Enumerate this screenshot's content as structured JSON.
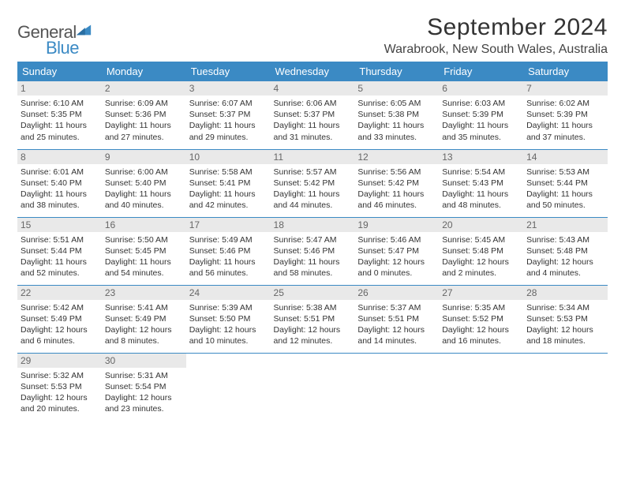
{
  "brand": {
    "name_line1": "General",
    "name_line2": "Blue",
    "color_gray": "#555555",
    "color_blue": "#3b8ac4"
  },
  "header": {
    "month_title": "September 2024",
    "location": "Warabrook, New South Wales, Australia"
  },
  "style": {
    "header_bg": "#3b8ac4",
    "header_fg": "#ffffff",
    "daynum_bg": "#e9e9e9",
    "daynum_fg": "#666666",
    "row_border": "#3b8ac4",
    "body_text": "#333333",
    "page_bg": "#ffffff",
    "title_fontsize": 30,
    "location_fontsize": 16,
    "dayhead_fontsize": 13,
    "daynum_fontsize": 12,
    "daybody_fontsize": 10.5
  },
  "weekdays": [
    "Sunday",
    "Monday",
    "Tuesday",
    "Wednesday",
    "Thursday",
    "Friday",
    "Saturday"
  ],
  "weeks": [
    [
      {
        "n": "1",
        "sr": "Sunrise: 6:10 AM",
        "ss": "Sunset: 5:35 PM",
        "d1": "Daylight: 11 hours",
        "d2": "and 25 minutes."
      },
      {
        "n": "2",
        "sr": "Sunrise: 6:09 AM",
        "ss": "Sunset: 5:36 PM",
        "d1": "Daylight: 11 hours",
        "d2": "and 27 minutes."
      },
      {
        "n": "3",
        "sr": "Sunrise: 6:07 AM",
        "ss": "Sunset: 5:37 PM",
        "d1": "Daylight: 11 hours",
        "d2": "and 29 minutes."
      },
      {
        "n": "4",
        "sr": "Sunrise: 6:06 AM",
        "ss": "Sunset: 5:37 PM",
        "d1": "Daylight: 11 hours",
        "d2": "and 31 minutes."
      },
      {
        "n": "5",
        "sr": "Sunrise: 6:05 AM",
        "ss": "Sunset: 5:38 PM",
        "d1": "Daylight: 11 hours",
        "d2": "and 33 minutes."
      },
      {
        "n": "6",
        "sr": "Sunrise: 6:03 AM",
        "ss": "Sunset: 5:39 PM",
        "d1": "Daylight: 11 hours",
        "d2": "and 35 minutes."
      },
      {
        "n": "7",
        "sr": "Sunrise: 6:02 AM",
        "ss": "Sunset: 5:39 PM",
        "d1": "Daylight: 11 hours",
        "d2": "and 37 minutes."
      }
    ],
    [
      {
        "n": "8",
        "sr": "Sunrise: 6:01 AM",
        "ss": "Sunset: 5:40 PM",
        "d1": "Daylight: 11 hours",
        "d2": "and 38 minutes."
      },
      {
        "n": "9",
        "sr": "Sunrise: 6:00 AM",
        "ss": "Sunset: 5:40 PM",
        "d1": "Daylight: 11 hours",
        "d2": "and 40 minutes."
      },
      {
        "n": "10",
        "sr": "Sunrise: 5:58 AM",
        "ss": "Sunset: 5:41 PM",
        "d1": "Daylight: 11 hours",
        "d2": "and 42 minutes."
      },
      {
        "n": "11",
        "sr": "Sunrise: 5:57 AM",
        "ss": "Sunset: 5:42 PM",
        "d1": "Daylight: 11 hours",
        "d2": "and 44 minutes."
      },
      {
        "n": "12",
        "sr": "Sunrise: 5:56 AM",
        "ss": "Sunset: 5:42 PM",
        "d1": "Daylight: 11 hours",
        "d2": "and 46 minutes."
      },
      {
        "n": "13",
        "sr": "Sunrise: 5:54 AM",
        "ss": "Sunset: 5:43 PM",
        "d1": "Daylight: 11 hours",
        "d2": "and 48 minutes."
      },
      {
        "n": "14",
        "sr": "Sunrise: 5:53 AM",
        "ss": "Sunset: 5:44 PM",
        "d1": "Daylight: 11 hours",
        "d2": "and 50 minutes."
      }
    ],
    [
      {
        "n": "15",
        "sr": "Sunrise: 5:51 AM",
        "ss": "Sunset: 5:44 PM",
        "d1": "Daylight: 11 hours",
        "d2": "and 52 minutes."
      },
      {
        "n": "16",
        "sr": "Sunrise: 5:50 AM",
        "ss": "Sunset: 5:45 PM",
        "d1": "Daylight: 11 hours",
        "d2": "and 54 minutes."
      },
      {
        "n": "17",
        "sr": "Sunrise: 5:49 AM",
        "ss": "Sunset: 5:46 PM",
        "d1": "Daylight: 11 hours",
        "d2": "and 56 minutes."
      },
      {
        "n": "18",
        "sr": "Sunrise: 5:47 AM",
        "ss": "Sunset: 5:46 PM",
        "d1": "Daylight: 11 hours",
        "d2": "and 58 minutes."
      },
      {
        "n": "19",
        "sr": "Sunrise: 5:46 AM",
        "ss": "Sunset: 5:47 PM",
        "d1": "Daylight: 12 hours",
        "d2": "and 0 minutes."
      },
      {
        "n": "20",
        "sr": "Sunrise: 5:45 AM",
        "ss": "Sunset: 5:48 PM",
        "d1": "Daylight: 12 hours",
        "d2": "and 2 minutes."
      },
      {
        "n": "21",
        "sr": "Sunrise: 5:43 AM",
        "ss": "Sunset: 5:48 PM",
        "d1": "Daylight: 12 hours",
        "d2": "and 4 minutes."
      }
    ],
    [
      {
        "n": "22",
        "sr": "Sunrise: 5:42 AM",
        "ss": "Sunset: 5:49 PM",
        "d1": "Daylight: 12 hours",
        "d2": "and 6 minutes."
      },
      {
        "n": "23",
        "sr": "Sunrise: 5:41 AM",
        "ss": "Sunset: 5:49 PM",
        "d1": "Daylight: 12 hours",
        "d2": "and 8 minutes."
      },
      {
        "n": "24",
        "sr": "Sunrise: 5:39 AM",
        "ss": "Sunset: 5:50 PM",
        "d1": "Daylight: 12 hours",
        "d2": "and 10 minutes."
      },
      {
        "n": "25",
        "sr": "Sunrise: 5:38 AM",
        "ss": "Sunset: 5:51 PM",
        "d1": "Daylight: 12 hours",
        "d2": "and 12 minutes."
      },
      {
        "n": "26",
        "sr": "Sunrise: 5:37 AM",
        "ss": "Sunset: 5:51 PM",
        "d1": "Daylight: 12 hours",
        "d2": "and 14 minutes."
      },
      {
        "n": "27",
        "sr": "Sunrise: 5:35 AM",
        "ss": "Sunset: 5:52 PM",
        "d1": "Daylight: 12 hours",
        "d2": "and 16 minutes."
      },
      {
        "n": "28",
        "sr": "Sunrise: 5:34 AM",
        "ss": "Sunset: 5:53 PM",
        "d1": "Daylight: 12 hours",
        "d2": "and 18 minutes."
      }
    ],
    [
      {
        "n": "29",
        "sr": "Sunrise: 5:32 AM",
        "ss": "Sunset: 5:53 PM",
        "d1": "Daylight: 12 hours",
        "d2": "and 20 minutes."
      },
      {
        "n": "30",
        "sr": "Sunrise: 5:31 AM",
        "ss": "Sunset: 5:54 PM",
        "d1": "Daylight: 12 hours",
        "d2": "and 23 minutes."
      },
      null,
      null,
      null,
      null,
      null
    ]
  ]
}
